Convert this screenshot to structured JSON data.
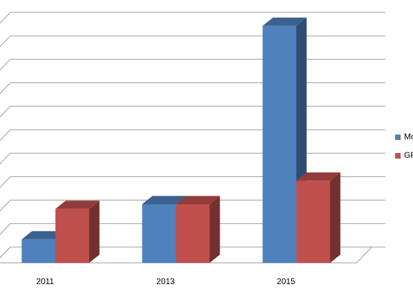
{
  "chart_data": {
    "type": "bar3d",
    "categories": [
      "2011",
      "2013",
      "2015"
    ],
    "series": [
      {
        "name": "Mo",
        "color": "#4f81bd",
        "values": [
          1,
          2.5,
          10.1
        ]
      },
      {
        "name": "GP",
        "color": "#c0504d",
        "values": [
          2.3,
          2.5,
          3.5
        ]
      }
    ],
    "ylim": [
      0,
      10
    ],
    "yticks": [
      0,
      1,
      2,
      3,
      4,
      5,
      6,
      7,
      8,
      9,
      10
    ],
    "grid": true,
    "legend": "right"
  }
}
